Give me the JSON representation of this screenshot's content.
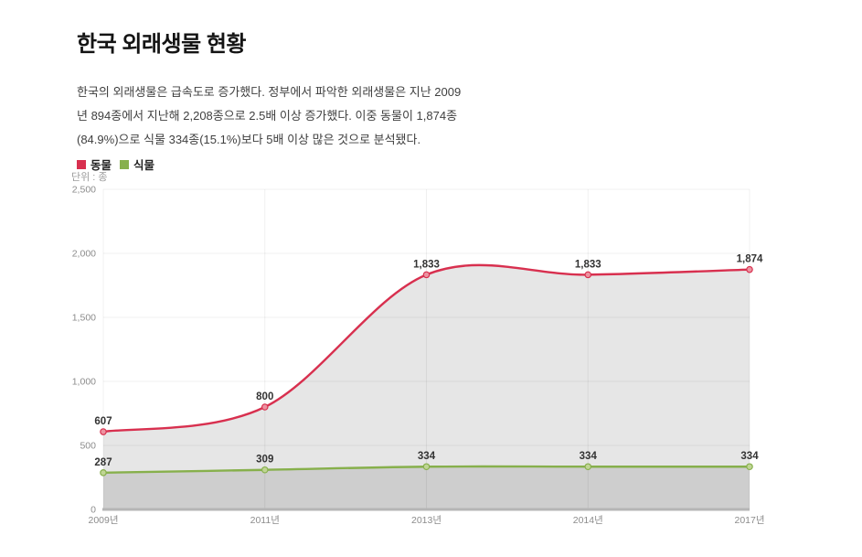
{
  "header": {
    "title": "한국 외래생물 현황"
  },
  "intro": {
    "lines": [
      "한국의 외래생물은 급속도로 증가했다. 정부에서 파악한 외래생물은 지난 2009",
      "년 894종에서 지난해 2,208종으로 2.5배 이상 증가했다. 이중 동물이 1,874종",
      "(84.9%)으로 식물 334종(15.1%)보다 5배 이상 많은 것으로 분석됐다."
    ]
  },
  "chart_data": {
    "type": "area",
    "title": "한국 외래생물 현황",
    "unit_label": "단위 : 종",
    "categories": [
      "2009년",
      "2011년",
      "2013년",
      "2014년",
      "2017년"
    ],
    "series": [
      {
        "name": "동물",
        "key": "animals",
        "values": [
          607,
          800,
          1833,
          1833,
          1874
        ],
        "line_color": "#d8304f",
        "marker_fill": "#ec93a1",
        "area_fill": "#e6e6e6"
      },
      {
        "name": "식물",
        "key": "plants",
        "values": [
          287,
          309,
          334,
          334,
          334
        ],
        "line_color": "#87b04c",
        "marker_fill": "#c0d595",
        "area_fill": "#cecece"
      }
    ],
    "ylim": [
      0,
      2500
    ],
    "ytick_step": 500,
    "ytick_labels": [
      "0",
      "500",
      "1,000",
      "1,500",
      "2,000",
      "2,500"
    ],
    "data_labels": [
      [
        "607",
        "800",
        "1,833",
        "1,833",
        "1,874"
      ],
      [
        "287",
        "309",
        "334",
        "334",
        "334"
      ]
    ],
    "grid": true,
    "legend_position": "top-left",
    "colors": {
      "grid_line": "rgba(0,0,0,0.06)",
      "axis_line": "#b5b5b5",
      "tick_text": "#8c8c8c",
      "data_label_text": "#333333"
    }
  }
}
